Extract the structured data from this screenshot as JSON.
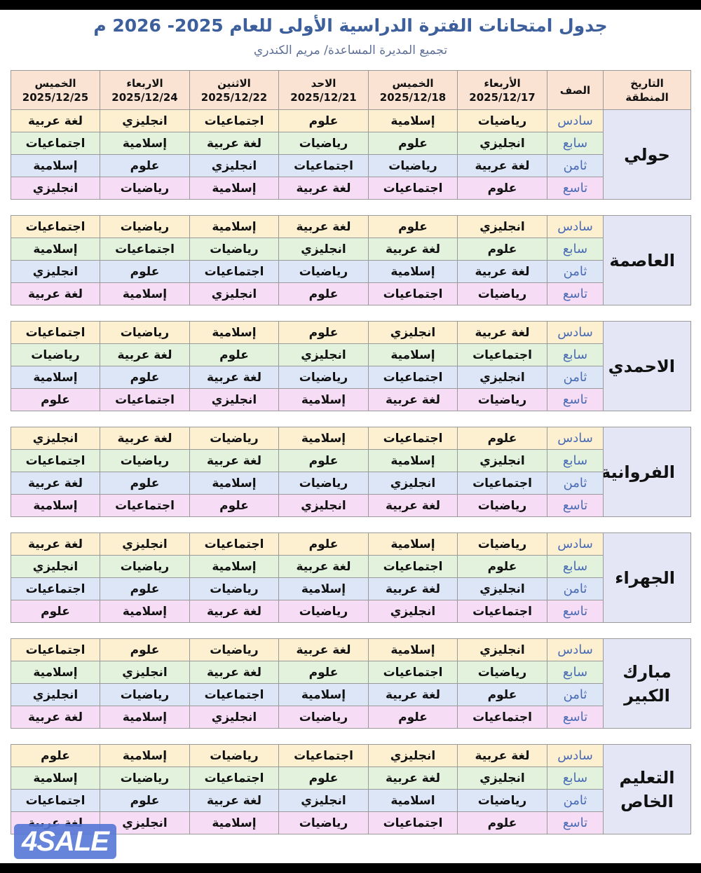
{
  "title": "جدول امتحانات الفترة الدراسية الأولى للعام 2025- 2026 م",
  "subtitle": "تجميع المديرة المساعدة/ مريم الكندري",
  "header": {
    "corner_line1": "التاريخ",
    "corner_line2": "المنطقة",
    "grade": "الصف",
    "dates": [
      {
        "day": "الأربعاء",
        "date": "2025/12/17"
      },
      {
        "day": "الخميس",
        "date": "2025/12/18"
      },
      {
        "day": "الاحد",
        "date": "2025/12/21"
      },
      {
        "day": "الاثنين",
        "date": "2025/12/22"
      },
      {
        "day": "الاربعاء",
        "date": "2025/12/24"
      },
      {
        "day": "الخميس",
        "date": "2025/12/25"
      }
    ]
  },
  "row_colors": [
    "#fdf0d0",
    "#e2f2dc",
    "#dde6f7",
    "#f7dcf5"
  ],
  "regions": [
    {
      "name": "حولي",
      "rows": [
        {
          "grade": "سادس",
          "subjects": [
            "رياضيات",
            "إسلامية",
            "علوم",
            "اجتماعيات",
            "انجليزي",
            "لغة عربية"
          ]
        },
        {
          "grade": "سابع",
          "subjects": [
            "انجليزي",
            "علوم",
            "رياضيات",
            "لغة عربية",
            "إسلامية",
            "اجتماعيات"
          ]
        },
        {
          "grade": "ثامن",
          "subjects": [
            "لغة عربية",
            "رياضيات",
            "اجتماعيات",
            "انجليزي",
            "علوم",
            "إسلامية"
          ]
        },
        {
          "grade": "تاسع",
          "subjects": [
            "علوم",
            "اجتماعيات",
            "لغة عربية",
            "إسلامية",
            "رياضيات",
            "انجليزي"
          ]
        }
      ]
    },
    {
      "name": "العاصمة",
      "rows": [
        {
          "grade": "سادس",
          "subjects": [
            "انجليزي",
            "علوم",
            "لغة عربية",
            "إسلامية",
            "رياضيات",
            "اجتماعيات"
          ]
        },
        {
          "grade": "سابع",
          "subjects": [
            "علوم",
            "لغة عربية",
            "انجليزي",
            "رياضيات",
            "اجتماعيات",
            "إسلامية"
          ]
        },
        {
          "grade": "ثامن",
          "subjects": [
            "لغة عربية",
            "إسلامية",
            "رياضيات",
            "اجتماعيات",
            "علوم",
            "انجليزي"
          ]
        },
        {
          "grade": "تاسع",
          "subjects": [
            "رياضيات",
            "اجتماعيات",
            "علوم",
            "انجليزي",
            "إسلامية",
            "لغة عربية"
          ]
        }
      ]
    },
    {
      "name": "الاحمدي",
      "rows": [
        {
          "grade": "سادس",
          "subjects": [
            "لغة عربية",
            "انجليزي",
            "علوم",
            "إسلامية",
            "رياضيات",
            "اجتماعيات"
          ]
        },
        {
          "grade": "سابع",
          "subjects": [
            "اجتماعيات",
            "إسلامية",
            "انجليزي",
            "علوم",
            "لغة عربية",
            "رياضيات"
          ]
        },
        {
          "grade": "ثامن",
          "subjects": [
            "انجليزي",
            "اجتماعيات",
            "رياضيات",
            "لغة عربية",
            "علوم",
            "إسلامية"
          ]
        },
        {
          "grade": "تاسع",
          "subjects": [
            "رياضيات",
            "لغة عربية",
            "إسلامية",
            "انجليزي",
            "اجتماعيات",
            "علوم"
          ]
        }
      ]
    },
    {
      "name": "الفروانية",
      "rows": [
        {
          "grade": "سادس",
          "subjects": [
            "علوم",
            "اجتماعيات",
            "إسلامية",
            "رياضيات",
            "لغة عربية",
            "انجليزي"
          ]
        },
        {
          "grade": "سابع",
          "subjects": [
            "انجليزي",
            "إسلامية",
            "علوم",
            "لغة عربية",
            "رياضيات",
            "اجتماعيات"
          ]
        },
        {
          "grade": "ثامن",
          "subjects": [
            "اجتماعيات",
            "انجليزي",
            "رياضيات",
            "إسلامية",
            "علوم",
            "لغة عربية"
          ]
        },
        {
          "grade": "تاسع",
          "subjects": [
            "رياضيات",
            "لغة عربية",
            "انجليزي",
            "علوم",
            "اجتماعيات",
            "إسلامية"
          ]
        }
      ]
    },
    {
      "name": "الجهراء",
      "rows": [
        {
          "grade": "سادس",
          "subjects": [
            "رياضيات",
            "إسلامية",
            "علوم",
            "اجتماعيات",
            "انجليزي",
            "لغة عربية"
          ]
        },
        {
          "grade": "سابع",
          "subjects": [
            "علوم",
            "اجتماعيات",
            "لغة عربية",
            "إسلامية",
            "رياضيات",
            "انجليزي"
          ]
        },
        {
          "grade": "ثامن",
          "subjects": [
            "انجليزي",
            "لغة عربية",
            "إسلامية",
            "رياضيات",
            "علوم",
            "اجتماعيات"
          ]
        },
        {
          "grade": "تاسع",
          "subjects": [
            "اجتماعيات",
            "انجليزي",
            "رياضيات",
            "لغة عربية",
            "إسلامية",
            "علوم"
          ]
        }
      ]
    },
    {
      "name": "مبارك الكبير",
      "rows": [
        {
          "grade": "سادس",
          "subjects": [
            "انجليزي",
            "إسلامية",
            "لغة عربية",
            "رياضيات",
            "علوم",
            "اجتماعيات"
          ]
        },
        {
          "grade": "سابع",
          "subjects": [
            "رياضيات",
            "اجتماعيات",
            "علوم",
            "لغة عربية",
            "انجليزي",
            "إسلامية"
          ]
        },
        {
          "grade": "ثامن",
          "subjects": [
            "علوم",
            "لغة عربية",
            "إسلامية",
            "اجتماعيات",
            "رياضيات",
            "انجليزي"
          ]
        },
        {
          "grade": "تاسع",
          "subjects": [
            "اجتماعيات",
            "علوم",
            "رياضيات",
            "انجليزي",
            "إسلامية",
            "لغة عربية"
          ]
        }
      ]
    },
    {
      "name": "التعليم الخاص",
      "rows": [
        {
          "grade": "سادس",
          "subjects": [
            "لغة عربية",
            "انجليزي",
            "اجتماعيات",
            "رياضيات",
            "إسلامية",
            "علوم"
          ]
        },
        {
          "grade": "سابع",
          "subjects": [
            "انجليزي",
            "لغة عربية",
            "علوم",
            "اجتماعيات",
            "رياضيات",
            "إسلامية"
          ]
        },
        {
          "grade": "ثامن",
          "subjects": [
            "رياضيات",
            "اسلامية",
            "انجليزي",
            "لغة عربية",
            "علوم",
            "اجتماعيات"
          ]
        },
        {
          "grade": "تاسع",
          "subjects": [
            "علوم",
            "اجتماعيات",
            "رياضيات",
            "إسلامية",
            "انجليزي",
            "لغة عربية"
          ]
        }
      ]
    }
  ],
  "watermark": "4SALE"
}
